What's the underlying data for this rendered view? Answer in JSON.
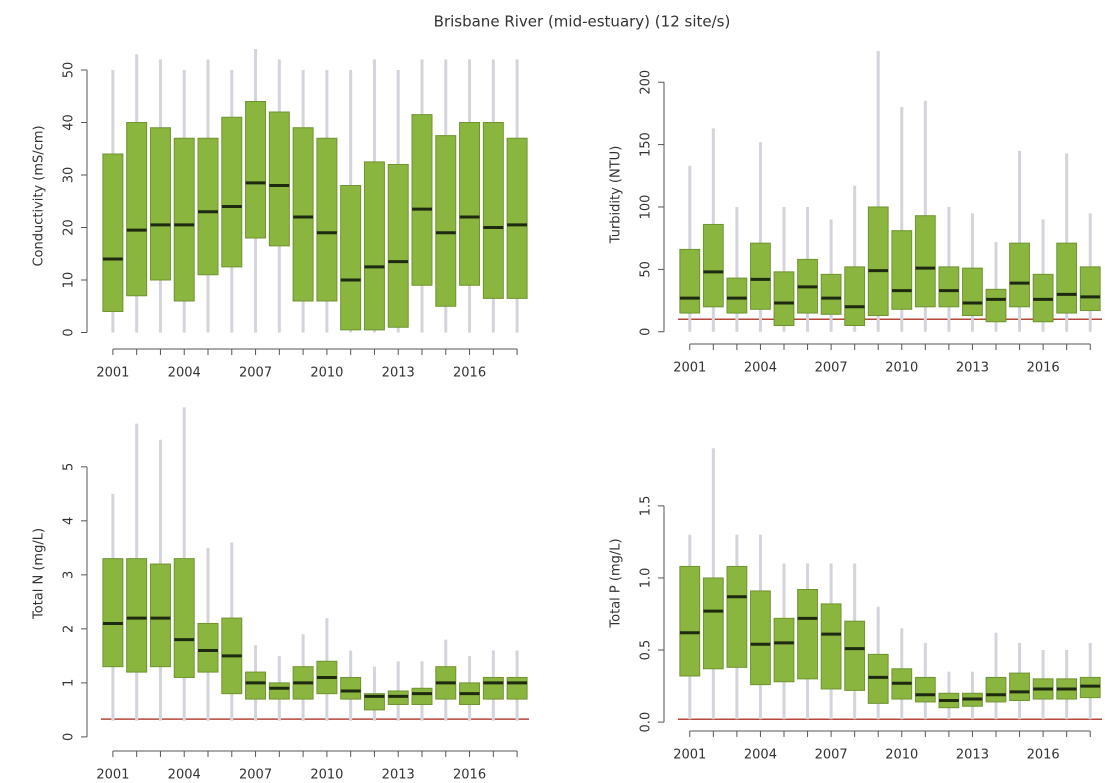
{
  "title": "Brisbane River (mid-estuary) (12 site/s)",
  "chart_data": [
    {
      "type": "box",
      "ylabel": "Conductivity (mS/cm)",
      "categories": [
        "2001",
        null,
        null,
        "2004",
        null,
        null,
        "2007",
        null,
        null,
        "2010",
        null,
        null,
        "2013",
        null,
        null,
        "2016",
        null,
        null
      ],
      "whisker_low": [
        0,
        0,
        0,
        0,
        0,
        0,
        0,
        0,
        0,
        0,
        0,
        0,
        0,
        0,
        0,
        0,
        0,
        0
      ],
      "q1": [
        4,
        7,
        10,
        6,
        11,
        12.5,
        18,
        16.5,
        6,
        6,
        0.5,
        0.5,
        1,
        9,
        5,
        9,
        6.5,
        6.5
      ],
      "median": [
        14,
        19.5,
        20.5,
        20.5,
        23,
        24,
        28.5,
        28,
        22,
        19,
        10,
        12.5,
        13.5,
        23.5,
        19,
        22,
        20,
        20.5
      ],
      "q3": [
        34,
        40,
        39,
        37,
        37,
        41,
        44,
        42,
        39,
        37,
        28,
        32.5,
        32,
        41.5,
        37.5,
        40,
        40,
        37
      ],
      "whisker_high": [
        50,
        53,
        52,
        50,
        52,
        50,
        54,
        52,
        50,
        50,
        50,
        52,
        50,
        52,
        52,
        52,
        52,
        52
      ],
      "color": "#8ab53f",
      "ylim": [
        -2,
        54
      ],
      "yticks": [
        0,
        10,
        20,
        30,
        40,
        50
      ]
    },
    {
      "type": "box",
      "ylabel": "Turbidity (NTU)",
      "categories": [
        "2001",
        null,
        null,
        "2004",
        null,
        null,
        "2007",
        null,
        null,
        "2010",
        null,
        null,
        "2013",
        null,
        null,
        "2016",
        null,
        null
      ],
      "whisker_low": [
        0,
        0,
        0,
        0,
        0,
        0,
        0,
        0,
        0,
        0,
        0,
        0,
        0,
        0,
        0,
        0,
        0,
        0
      ],
      "q1": [
        15,
        20,
        15,
        18,
        5,
        15,
        14,
        5,
        13,
        18,
        20,
        20,
        13,
        8,
        20,
        8,
        15,
        17
      ],
      "median": [
        27,
        48,
        27,
        42,
        23,
        36,
        27,
        20,
        49,
        33,
        51,
        33,
        23,
        26,
        39,
        26,
        30,
        28
      ],
      "q3": [
        66,
        86,
        43,
        71,
        48,
        58,
        46,
        52,
        100,
        81,
        93,
        52,
        51,
        34,
        71,
        46,
        71,
        52
      ],
      "whisker_high": [
        133,
        163,
        100,
        152,
        100,
        100,
        90,
        117,
        225,
        180,
        185,
        100,
        95,
        72,
        145,
        90,
        143,
        95
      ],
      "color": "#8ab53f",
      "guideline": 10,
      "guideline_color": "#b5483b",
      "ylim": [
        -5,
        225
      ],
      "yticks": [
        0,
        50,
        100,
        150,
        200
      ]
    },
    {
      "type": "box",
      "ylabel": "Total N (mg/L)",
      "categories": [
        "2001",
        null,
        null,
        "2004",
        null,
        null,
        "2007",
        null,
        null,
        "2010",
        null,
        null,
        "2013",
        null,
        null,
        "2016",
        null,
        null
      ],
      "whisker_low": [
        0.3,
        0.3,
        0.3,
        0.3,
        0.3,
        0.3,
        0.3,
        0.3,
        0.3,
        0.3,
        0.3,
        0.3,
        0.3,
        0.3,
        0.3,
        0.3,
        0.3,
        0.3
      ],
      "q1": [
        1.3,
        1.2,
        1.3,
        1.1,
        1.2,
        0.8,
        0.7,
        0.7,
        0.7,
        0.8,
        0.7,
        0.5,
        0.6,
        0.6,
        0.7,
        0.6,
        0.7,
        0.7
      ],
      "median": [
        2.1,
        2.2,
        2.2,
        1.8,
        1.6,
        1.5,
        1.0,
        0.9,
        1.0,
        1.1,
        0.85,
        0.75,
        0.75,
        0.8,
        1.0,
        0.8,
        1.0,
        1.0
      ],
      "q3": [
        3.3,
        3.3,
        3.2,
        3.3,
        2.1,
        2.2,
        1.2,
        1.0,
        1.3,
        1.4,
        1.1,
        0.8,
        0.85,
        0.9,
        1.3,
        1.0,
        1.1,
        1.1
      ],
      "whisker_high": [
        4.5,
        5.8,
        5.5,
        6.1,
        3.5,
        3.6,
        1.7,
        1.5,
        1.9,
        2.2,
        1.6,
        1.3,
        1.4,
        1.4,
        1.8,
        1.5,
        1.6,
        1.6
      ],
      "color": "#8ab53f",
      "guideline": 0.33,
      "guideline_color": "#b5483b",
      "ylim": [
        -0.15,
        6.2
      ],
      "yticks": [
        0,
        1,
        2,
        3,
        4,
        5
      ]
    },
    {
      "type": "box",
      "ylabel": "Total P (mg/L)",
      "categories": [
        "2001",
        null,
        null,
        "2004",
        null,
        null,
        "2007",
        null,
        null,
        "2010",
        null,
        null,
        "2013",
        null,
        null,
        "2016",
        null,
        null
      ],
      "whisker_low": [
        0.02,
        0.02,
        0.02,
        0.02,
        0.02,
        0.02,
        0.02,
        0.02,
        0.02,
        0.02,
        0.02,
        0.02,
        0.02,
        0.02,
        0.02,
        0.02,
        0.02,
        0.02
      ],
      "q1": [
        0.32,
        0.37,
        0.38,
        0.26,
        0.28,
        0.3,
        0.23,
        0.22,
        0.13,
        0.16,
        0.14,
        0.1,
        0.11,
        0.14,
        0.15,
        0.16,
        0.16,
        0.17
      ],
      "median": [
        0.62,
        0.77,
        0.87,
        0.54,
        0.55,
        0.72,
        0.61,
        0.51,
        0.31,
        0.27,
        0.19,
        0.15,
        0.16,
        0.19,
        0.21,
        0.23,
        0.23,
        0.25
      ],
      "q3": [
        1.08,
        1.0,
        1.08,
        0.91,
        0.72,
        0.92,
        0.82,
        0.7,
        0.47,
        0.37,
        0.31,
        0.2,
        0.2,
        0.31,
        0.34,
        0.3,
        0.3,
        0.31
      ],
      "whisker_high": [
        1.3,
        1.9,
        1.3,
        1.3,
        1.1,
        1.1,
        1.1,
        1.1,
        0.8,
        0.65,
        0.55,
        0.35,
        0.35,
        0.62,
        0.55,
        0.5,
        0.5,
        0.55
      ],
      "color": "#8ab53f",
      "guideline": 0.02,
      "guideline_color": "#b5483b",
      "ylim": [
        -0.02,
        1.95
      ],
      "yticks": [
        {
          "value": 0,
          "label": "0.0"
        },
        {
          "value": 0.5,
          "label": "0.5"
        },
        {
          "value": 1,
          "label": "1.0"
        },
        {
          "value": 1.5,
          "label": "1.5"
        }
      ]
    }
  ]
}
